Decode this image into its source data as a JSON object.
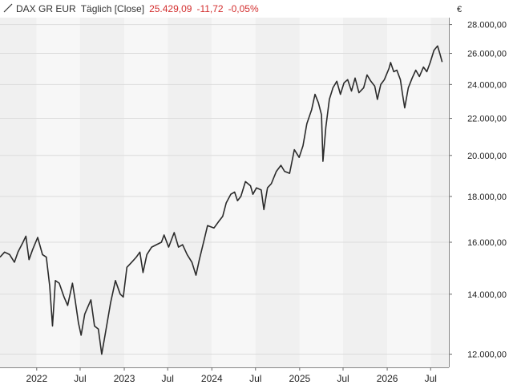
{
  "legend": {
    "instrument": "DAX GR EUR",
    "interval": "Täglich [Close]",
    "last": "25.429,09",
    "change": "-11,72",
    "change_pct": "-0,05%",
    "currency": "€"
  },
  "colors": {
    "line": "#2b2b2b",
    "band_dark": "#f0f0f0",
    "band_light": "#f7f7f7",
    "grid": "#dcdcdc",
    "negative": "#d32f2f"
  },
  "chart_data": {
    "type": "line",
    "title": "DAX GR EUR",
    "scale": "log",
    "ylim": [
      11600,
      28500
    ],
    "xlim": [
      "2021-08-01",
      "2026-09-15"
    ],
    "y_ticks": [
      {
        "value": 28000,
        "label": "28.000,00"
      },
      {
        "value": 26000,
        "label": "26.000,00"
      },
      {
        "value": 24000,
        "label": "24.000,00"
      },
      {
        "value": 22000,
        "label": "22.000,00"
      },
      {
        "value": 20000,
        "label": "20.000,00"
      },
      {
        "value": 18000,
        "label": "18.000,00"
      },
      {
        "value": 16000,
        "label": "16.000,00"
      },
      {
        "value": 14000,
        "label": "14.000,00"
      },
      {
        "value": 12000,
        "label": "12.000,00"
      }
    ],
    "x_ticks": [
      {
        "date": "2022-01-01",
        "label": "2022"
      },
      {
        "date": "2022-07-01",
        "label": "Jul"
      },
      {
        "date": "2023-01-01",
        "label": "2023"
      },
      {
        "date": "2023-07-01",
        "label": "Jul"
      },
      {
        "date": "2024-01-01",
        "label": "2024"
      },
      {
        "date": "2024-07-01",
        "label": "Jul"
      },
      {
        "date": "2025-01-01",
        "label": "2025"
      },
      {
        "date": "2025-07-01",
        "label": "Jul"
      },
      {
        "date": "2026-01-01",
        "label": "2026"
      },
      {
        "date": "2026-07-01",
        "label": "Jul"
      }
    ],
    "series": [
      {
        "points": [
          [
            "2021-08-01",
            15400
          ],
          [
            "2021-08-20",
            15600
          ],
          [
            "2021-09-10",
            15500
          ],
          [
            "2021-09-30",
            15200
          ],
          [
            "2021-10-15",
            15600
          ],
          [
            "2021-11-05",
            16000
          ],
          [
            "2021-11-17",
            16250
          ],
          [
            "2021-11-30",
            15300
          ],
          [
            "2021-12-15",
            15700
          ],
          [
            "2022-01-05",
            16200
          ],
          [
            "2022-01-25",
            15500
          ],
          [
            "2022-02-10",
            15400
          ],
          [
            "2022-02-24",
            14300
          ],
          [
            "2022-03-08",
            12900
          ],
          [
            "2022-03-20",
            14500
          ],
          [
            "2022-04-05",
            14400
          ],
          [
            "2022-04-25",
            13900
          ],
          [
            "2022-05-10",
            13600
          ],
          [
            "2022-05-30",
            14400
          ],
          [
            "2022-06-10",
            13800
          ],
          [
            "2022-06-24",
            13000
          ],
          [
            "2022-07-05",
            12600
          ],
          [
            "2022-07-20",
            13300
          ],
          [
            "2022-08-15",
            13800
          ],
          [
            "2022-08-30",
            12900
          ],
          [
            "2022-09-15",
            12800
          ],
          [
            "2022-09-29",
            12000
          ],
          [
            "2022-10-15",
            12700
          ],
          [
            "2022-11-05",
            13700
          ],
          [
            "2022-11-25",
            14500
          ],
          [
            "2022-12-15",
            14000
          ],
          [
            "2022-12-28",
            13900
          ],
          [
            "2023-01-12",
            15000
          ],
          [
            "2023-02-01",
            15200
          ],
          [
            "2023-02-20",
            15400
          ],
          [
            "2023-03-07",
            15600
          ],
          [
            "2023-03-20",
            14800
          ],
          [
            "2023-04-05",
            15500
          ],
          [
            "2023-04-25",
            15800
          ],
          [
            "2023-05-15",
            15900
          ],
          [
            "2023-06-05",
            16000
          ],
          [
            "2023-06-16",
            16300
          ],
          [
            "2023-07-05",
            15800
          ],
          [
            "2023-07-28",
            16400
          ],
          [
            "2023-08-15",
            15800
          ],
          [
            "2023-09-01",
            15900
          ],
          [
            "2023-09-20",
            15500
          ],
          [
            "2023-10-10",
            15200
          ],
          [
            "2023-10-27",
            14700
          ],
          [
            "2023-11-10",
            15300
          ],
          [
            "2023-11-30",
            16100
          ],
          [
            "2023-12-14",
            16700
          ],
          [
            "2024-01-10",
            16600
          ],
          [
            "2024-01-31",
            16900
          ],
          [
            "2024-02-15",
            17100
          ],
          [
            "2024-03-01",
            17700
          ],
          [
            "2024-03-20",
            18100
          ],
          [
            "2024-04-05",
            18200
          ],
          [
            "2024-04-17",
            17800
          ],
          [
            "2024-05-01",
            18000
          ],
          [
            "2024-05-20",
            18700
          ],
          [
            "2024-06-10",
            18500
          ],
          [
            "2024-06-20",
            18100
          ],
          [
            "2024-07-05",
            18400
          ],
          [
            "2024-07-25",
            18300
          ],
          [
            "2024-08-05",
            17400
          ],
          [
            "2024-08-20",
            18400
          ],
          [
            "2024-09-05",
            18600
          ],
          [
            "2024-09-26",
            19200
          ],
          [
            "2024-10-15",
            19500
          ],
          [
            "2024-10-30",
            19200
          ],
          [
            "2024-11-20",
            19100
          ],
          [
            "2024-12-10",
            20300
          ],
          [
            "2024-12-30",
            19900
          ],
          [
            "2025-01-15",
            20500
          ],
          [
            "2025-01-31",
            21700
          ],
          [
            "2025-02-20",
            22500
          ],
          [
            "2025-03-06",
            23400
          ],
          [
            "2025-03-20",
            22900
          ],
          [
            "2025-04-02",
            22200
          ],
          [
            "2025-04-08",
            19700
          ],
          [
            "2025-04-20",
            21500
          ],
          [
            "2025-05-05",
            23100
          ],
          [
            "2025-05-20",
            23800
          ],
          [
            "2025-06-05",
            24200
          ],
          [
            "2025-06-20",
            23400
          ],
          [
            "2025-07-05",
            24100
          ],
          [
            "2025-07-20",
            24300
          ],
          [
            "2025-08-05",
            23600
          ],
          [
            "2025-08-20",
            24400
          ],
          [
            "2025-09-05",
            23500
          ],
          [
            "2025-09-25",
            23800
          ],
          [
            "2025-10-09",
            24600
          ],
          [
            "2025-10-25",
            24200
          ],
          [
            "2025-11-10",
            23900
          ],
          [
            "2025-11-21",
            23100
          ],
          [
            "2025-12-05",
            24000
          ],
          [
            "2025-12-20",
            24300
          ],
          [
            "2026-01-08",
            25000
          ],
          [
            "2026-01-15",
            25400
          ],
          [
            "2026-01-28",
            24800
          ],
          [
            "2026-02-10",
            24900
          ],
          [
            "2026-02-25",
            24300
          ],
          [
            "2026-03-06",
            23400
          ],
          [
            "2026-03-15",
            22600
          ],
          [
            "2026-03-30",
            23800
          ],
          [
            "2026-04-15",
            24400
          ],
          [
            "2026-04-30",
            24900
          ],
          [
            "2026-05-15",
            24500
          ],
          [
            "2026-06-01",
            25100
          ],
          [
            "2026-06-15",
            24800
          ],
          [
            "2026-06-29",
            25400
          ],
          [
            "2026-07-15",
            26200
          ],
          [
            "2026-07-30",
            26500
          ],
          [
            "2026-08-10",
            25900
          ],
          [
            "2026-08-18",
            25429
          ]
        ]
      }
    ]
  }
}
